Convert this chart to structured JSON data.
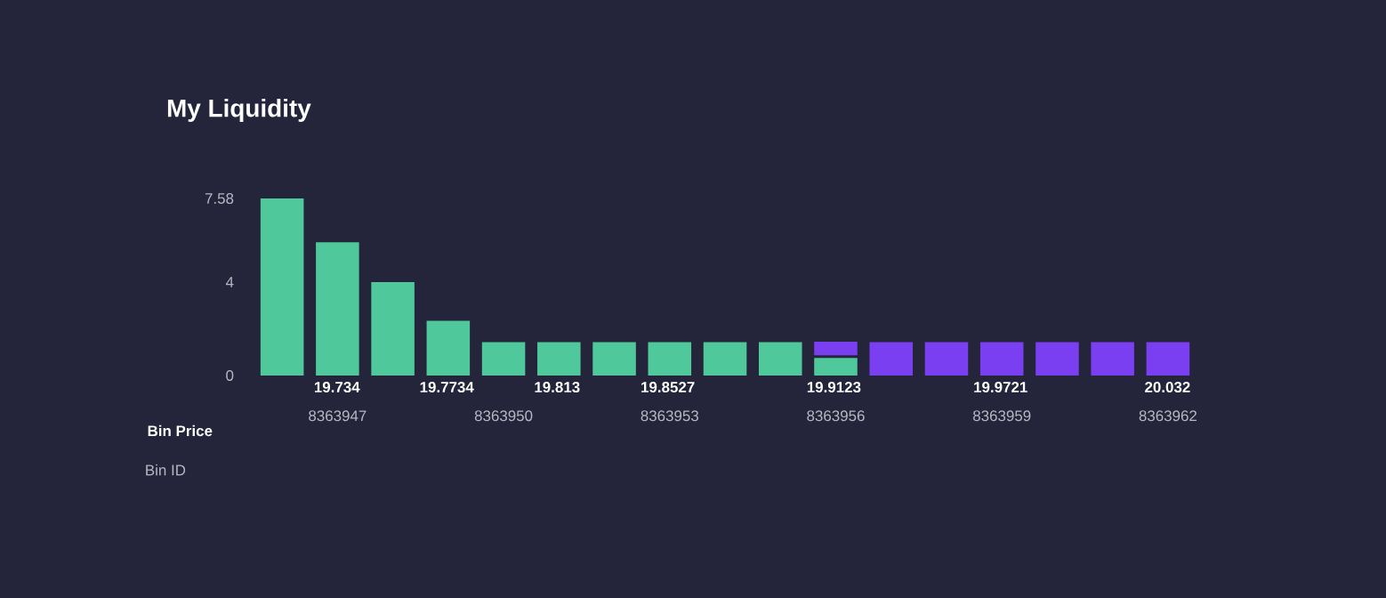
{
  "chart_data": {
    "type": "bar",
    "title": "My Liquidity",
    "xlabel": "Bin ID",
    "x2label": "Bin Price",
    "stacked": true,
    "x": [
      8363946,
      8363947,
      8363948,
      8363949,
      8363950,
      8363951,
      8363952,
      8363953,
      8363954,
      8363955,
      8363956,
      8363957,
      8363958,
      8363959,
      8363960,
      8363961,
      8363962
    ],
    "xlim": [
      8363945.5,
      8363962.5
    ],
    "xticks": [
      8363947,
      8363950,
      8363953,
      8363956,
      8363959,
      8363962
    ],
    "x2lim": [
      19.7044,
      20.0421
    ],
    "x2ticks": [
      19.734,
      19.7734,
      19.813,
      19.8527,
      19.9123,
      19.9721,
      20.032
    ],
    "ylim": [
      0,
      7.58
    ],
    "yticks": [
      0,
      4,
      7.58
    ],
    "series": [
      {
        "color": "#4fc99b",
        "values": [
          7.58,
          5.7,
          4.0,
          2.34,
          1.43,
          1.43,
          1.43,
          1.43,
          1.43,
          1.43,
          0.75,
          null,
          null,
          null,
          null,
          null,
          null
        ]
      },
      {
        "color": "#7a3ff0",
        "values": [
          null,
          null,
          null,
          null,
          null,
          null,
          null,
          null,
          null,
          null,
          0.7,
          1.43,
          1.43,
          1.43,
          1.43,
          1.43,
          1.43
        ]
      }
    ]
  }
}
